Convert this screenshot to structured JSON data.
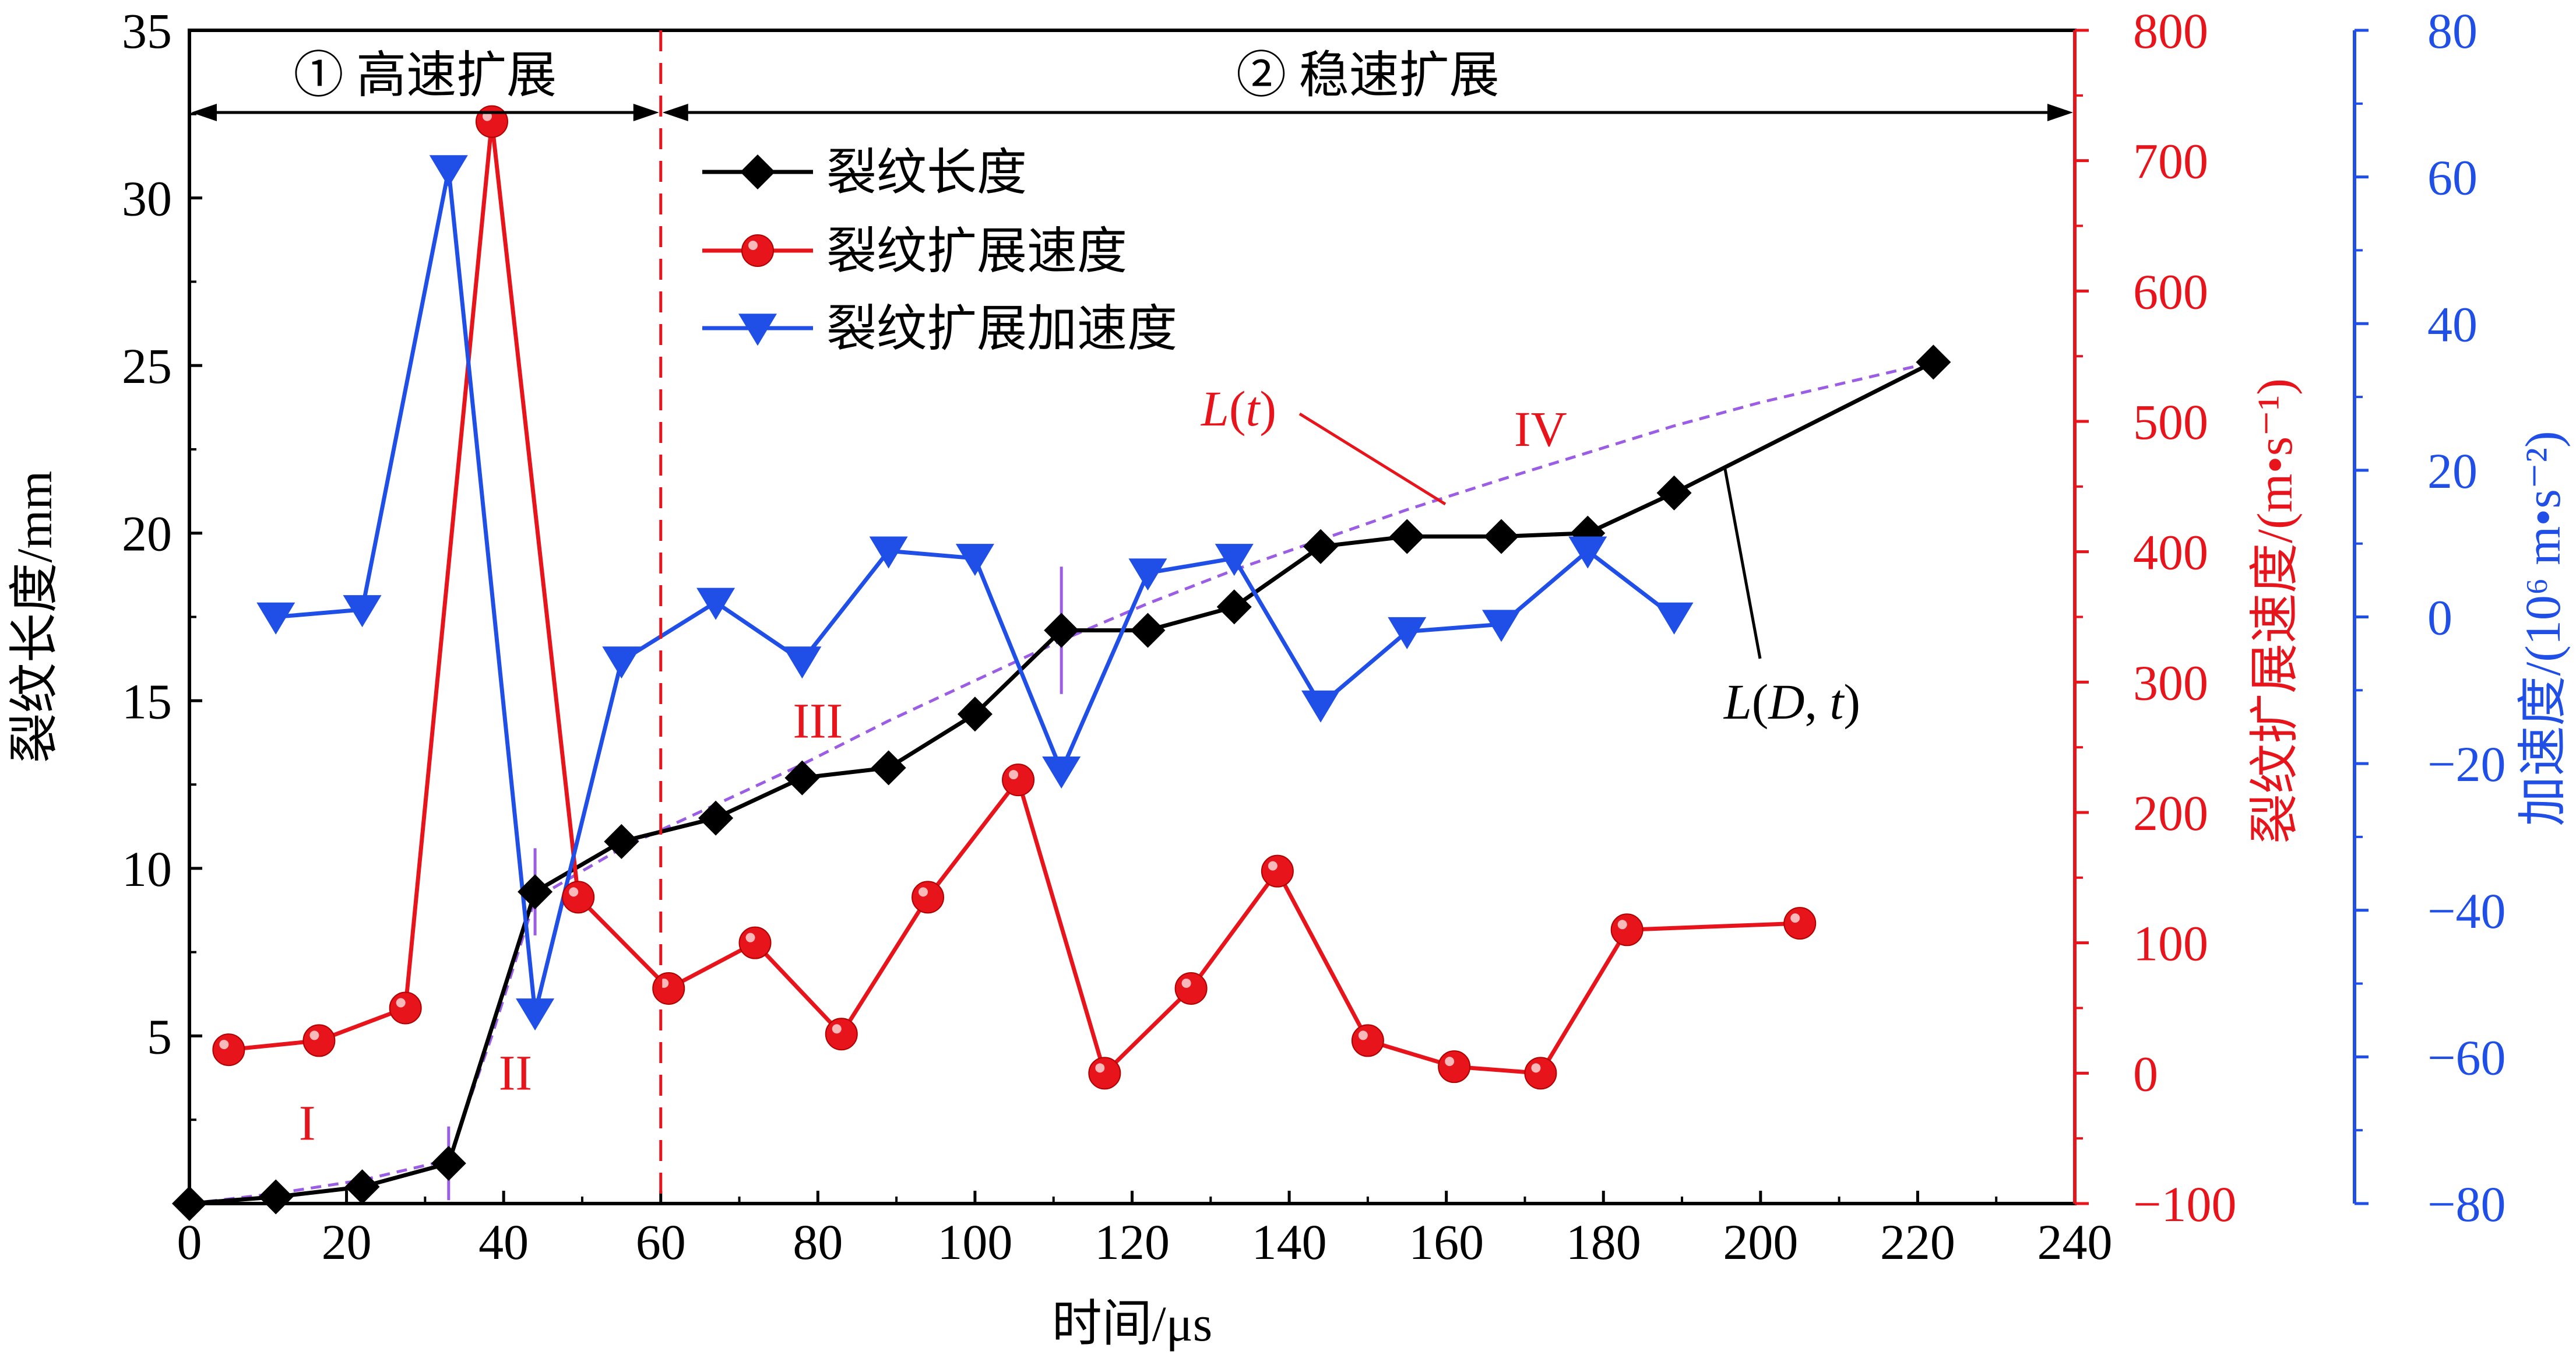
{
  "chart_data": {
    "type": "line",
    "xlabel": "时间/μs",
    "xlim": [
      0,
      240
    ],
    "xticks": [
      0,
      20,
      40,
      60,
      80,
      100,
      120,
      140,
      160,
      180,
      200,
      220,
      240
    ],
    "y_left": {
      "label": "裂纹长度/mm",
      "lim": [
        0,
        35
      ],
      "ticks": [
        5,
        10,
        15,
        20,
        25,
        30,
        35
      ],
      "color": "#000000"
    },
    "y_right1": {
      "label": "裂纹扩展速度/(m•s⁻¹)",
      "lim": [
        -100,
        800
      ],
      "ticks": [
        -100,
        0,
        100,
        200,
        300,
        400,
        500,
        600,
        700,
        800
      ],
      "color": "#e8141b"
    },
    "y_right2": {
      "label": "加速度/(10⁶ m•s⁻²)",
      "lim": [
        -80,
        80
      ],
      "ticks": [
        -80,
        -60,
        -40,
        -20,
        0,
        20,
        40,
        60,
        80
      ],
      "color": "#1f4fe6"
    },
    "series": [
      {
        "name": "裂纹长度",
        "axis": "left",
        "color": "#000000",
        "marker": "diamond",
        "x": [
          0,
          11,
          22,
          33,
          44,
          55,
          67,
          78,
          89,
          100,
          111,
          122,
          133,
          144,
          155,
          167,
          178,
          189,
          222
        ],
        "values": [
          0,
          0.2,
          0.5,
          1.2,
          9.3,
          10.8,
          11.5,
          12.7,
          13.0,
          14.6,
          17.1,
          17.1,
          17.8,
          19.6,
          19.9,
          19.9,
          20.0,
          21.2,
          25.1
        ]
      },
      {
        "name": "裂纹扩展速度",
        "axis": "right1",
        "color": "#e8141b",
        "marker": "circle",
        "x": [
          5,
          16.5,
          27.5,
          38.5,
          49.5,
          61,
          72,
          83,
          94,
          105.5,
          116.5,
          127.5,
          138.5,
          150,
          161,
          172,
          183,
          205
        ],
        "values": [
          18,
          25,
          50,
          730,
          135,
          65,
          100,
          30,
          135,
          225,
          0,
          65,
          155,
          25,
          5,
          0,
          110,
          115
        ]
      },
      {
        "name": "裂纹扩展加速度",
        "axis": "right2",
        "color": "#1f4fe6",
        "marker": "triangle-down",
        "x": [
          11,
          22,
          33,
          44,
          55,
          67,
          78,
          89,
          100,
          111,
          122,
          133,
          144,
          155,
          167,
          178,
          189
        ],
        "values": [
          0,
          1,
          61,
          -54,
          -6,
          2,
          -6,
          9,
          8,
          -21,
          6,
          8,
          -12,
          -2,
          -1,
          9,
          0
        ]
      }
    ],
    "fit_line": {
      "label": "L(t)",
      "color": "#9b5de5",
      "x": [
        0,
        11,
        22,
        33,
        38.5,
        44,
        55,
        67,
        78,
        89,
        100,
        111,
        122,
        133,
        144,
        155,
        167,
        178,
        189,
        200,
        211,
        222
      ],
      "values": [
        0,
        0.3,
        0.7,
        1.3,
        5.0,
        9.1,
        10.6,
        11.9,
        13.1,
        14.4,
        15.6,
        16.8,
        17.9,
        18.9,
        19.8,
        20.7,
        21.6,
        22.4,
        23.2,
        23.9,
        24.5,
        25.1
      ]
    },
    "error_bars": [
      {
        "x": 33,
        "value": 1.2,
        "half": 1.1
      },
      {
        "x": 44,
        "value": 9.3,
        "half": 1.3
      },
      {
        "x": 111,
        "value": 17.1,
        "half": 1.9
      }
    ],
    "dashed_vline_x": 60,
    "regions": [
      {
        "label": "① 高速扩展",
        "from": 0,
        "to": 60
      },
      {
        "label": "② 稳速扩展",
        "from": 60,
        "to": 240
      }
    ],
    "stage_labels": [
      {
        "label": "I",
        "x": 15,
        "y": 1.9
      },
      {
        "label": "II",
        "x": 41.5,
        "y": 3.4
      },
      {
        "label": "III",
        "x": 80,
        "y": 13.9
      },
      {
        "label": "IV",
        "x": 172,
        "y": 22.6
      }
    ],
    "annotations": [
      {
        "label": "L(t)",
        "x": 0,
        "y": 0
      },
      {
        "label": "L(D, t)",
        "x": 0,
        "y": 0
      }
    ],
    "legend": {
      "position": "top-center",
      "entries": [
        "裂纹长度",
        "裂纹扩展速度",
        "裂纹扩展加速度"
      ]
    }
  }
}
